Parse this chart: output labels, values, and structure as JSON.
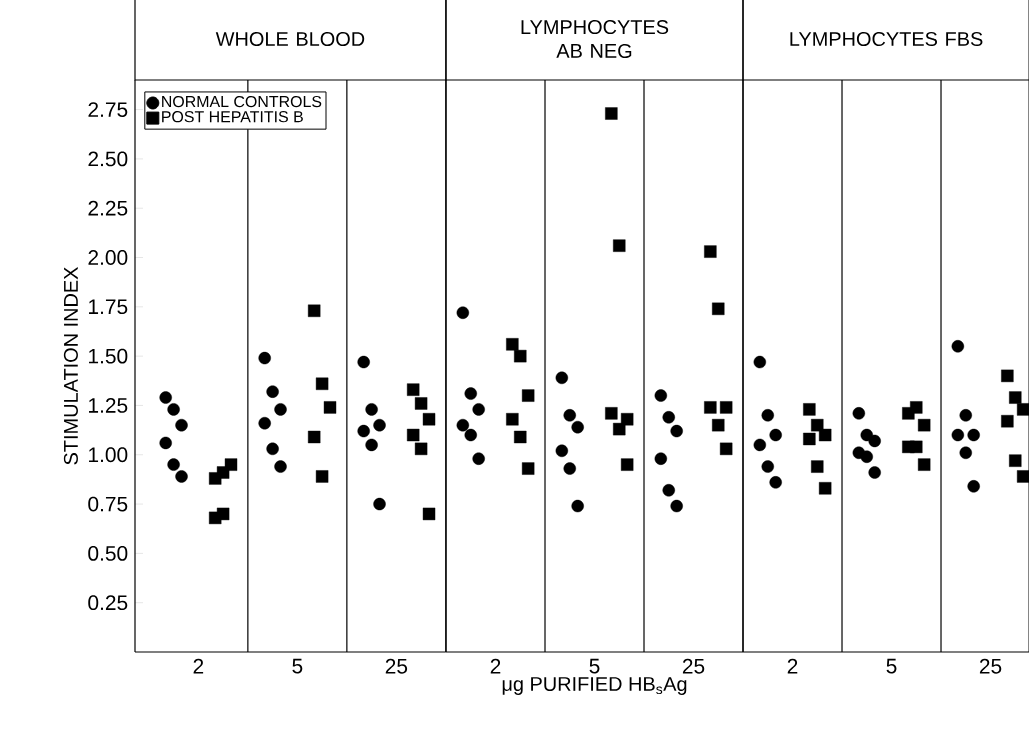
{
  "chart_data": [
    {
      "type": "scatter",
      "title": "WHOLE BLOOD",
      "ylabel": "STIMULATION INDEX",
      "categories": [
        "2",
        "5",
        "25"
      ],
      "ylim": [
        0,
        2.9
      ],
      "yticks": [
        {
          "value": 0.25,
          "label": "0.25"
        },
        {
          "value": 0.5,
          "label": "0.50"
        },
        {
          "value": 0.75,
          "label": "0.75"
        },
        {
          "value": 1,
          "label": "1.00"
        },
        {
          "value": 1.25,
          "label": "1.25"
        },
        {
          "value": 1.5,
          "label": "1.50"
        },
        {
          "value": 1.75,
          "label": "1.75"
        },
        {
          "value": 2,
          "label": "2.00"
        },
        {
          "value": 2.25,
          "label": "2.25"
        },
        {
          "value": 2.5,
          "label": "2.50"
        },
        2.75
      ],
      "legend": "top left",
      "series": [
        {
          "name": "NORMAL CONTROLS",
          "color": "#000000",
          "marker": "circle",
          "x": [
            "2",
            "2",
            "2",
            "2",
            "2",
            "2",
            "5",
            "5",
            "5",
            "5",
            "5",
            "5",
            "25",
            "25",
            "25",
            "25",
            "25",
            "25"
          ],
          "values": [
            1.29,
            1.23,
            1.15,
            1.06,
            0.95,
            0.89,
            1.49,
            1.32,
            1.23,
            1.16,
            1.03,
            0.94,
            1.47,
            1.23,
            1.15,
            1.12,
            1.05,
            0.75
          ]
        },
        {
          "name": "POST HEPATITIS B",
          "color": "#000000",
          "marker": "square",
          "x": [
            "2",
            "2",
            "2",
            "2",
            "2",
            "5",
            "5",
            "5",
            "5",
            "5",
            "25",
            "25",
            "25",
            "25",
            "25",
            "25"
          ],
          "values": [
            0.68,
            0.91,
            0.95,
            0.88,
            0.7,
            1.73,
            1.36,
            1.24,
            1.09,
            0.89,
            1.33,
            1.26,
            1.18,
            1.1,
            1.03,
            0.7
          ]
        }
      ]
    },
    {
      "type": "scatter",
      "title": "LYMPHOCYTES AB NEG",
      "xlabel": "μg PURIFIED HB$_{s}$Ag",
      "categories": [
        "2",
        "5",
        "25"
      ],
      "ylim": [
        0,
        2.9
      ],
      "tick_labels": "x",
      "series": [
        {
          "color": "#000000",
          "marker": "circle",
          "x": [
            "2",
            "2",
            "2",
            "2",
            "2",
            "2",
            "5",
            "5",
            "5",
            "5",
            "5",
            "5",
            "25",
            "25",
            "25",
            "25",
            "25",
            "25"
          ],
          "values": [
            1.72,
            1.31,
            1.23,
            1.15,
            1.1,
            0.98,
            1.39,
            1.2,
            1.14,
            1.02,
            0.93,
            0.74,
            1.3,
            1.19,
            1.12,
            0.98,
            0.82,
            0.74
          ]
        },
        {
          "color": "#000000",
          "marker": "square",
          "x": [
            "2",
            "2",
            "2",
            "2",
            "2",
            "2",
            "5",
            "5",
            "5",
            "5",
            "5",
            "5",
            "25",
            "25",
            "25",
            "25",
            "25",
            "25"
          ],
          "values": [
            1.56,
            1.5,
            1.3,
            1.18,
            1.09,
            0.93,
            2.73,
            2.06,
            1.18,
            1.21,
            1.13,
            0.95,
            2.03,
            1.74,
            1.24,
            1.24,
            1.15,
            1.03
          ]
        }
      ]
    },
    {
      "type": "scatter",
      "title": "LYMPHOCYTES FBS",
      "categories": [
        "2",
        "5",
        "25"
      ],
      "ylim": [
        0,
        2.9
      ],
      "tick_labels": "x",
      "series": [
        {
          "color": "#000000",
          "marker": "circle",
          "x": [
            "2",
            "2",
            "2",
            "2",
            "2",
            "2",
            "5",
            "5",
            "5",
            "5",
            "5",
            "5",
            "25",
            "25",
            "25",
            "25",
            "25",
            "25"
          ],
          "values": [
            1.47,
            1.2,
            1.1,
            1.05,
            0.94,
            0.86,
            1.21,
            1.1,
            1.07,
            1.01,
            0.99,
            0.91,
            1.55,
            1.2,
            1.1,
            1.1,
            1.01,
            0.84
          ]
        },
        {
          "color": "#000000",
          "marker": "square",
          "x": [
            "2",
            "2",
            "2",
            "2",
            "2",
            "2",
            "5",
            "5",
            "5",
            "5",
            "5",
            "5",
            "25",
            "25",
            "25",
            "25",
            "25",
            "25"
          ],
          "values": [
            1.23,
            1.15,
            1.1,
            1.08,
            0.94,
            0.83,
            1.21,
            1.24,
            1.15,
            1.04,
            1.04,
            0.95,
            1.4,
            1.29,
            1.23,
            1.17,
            0.97,
            0.89
          ]
        }
      ]
    }
  ]
}
